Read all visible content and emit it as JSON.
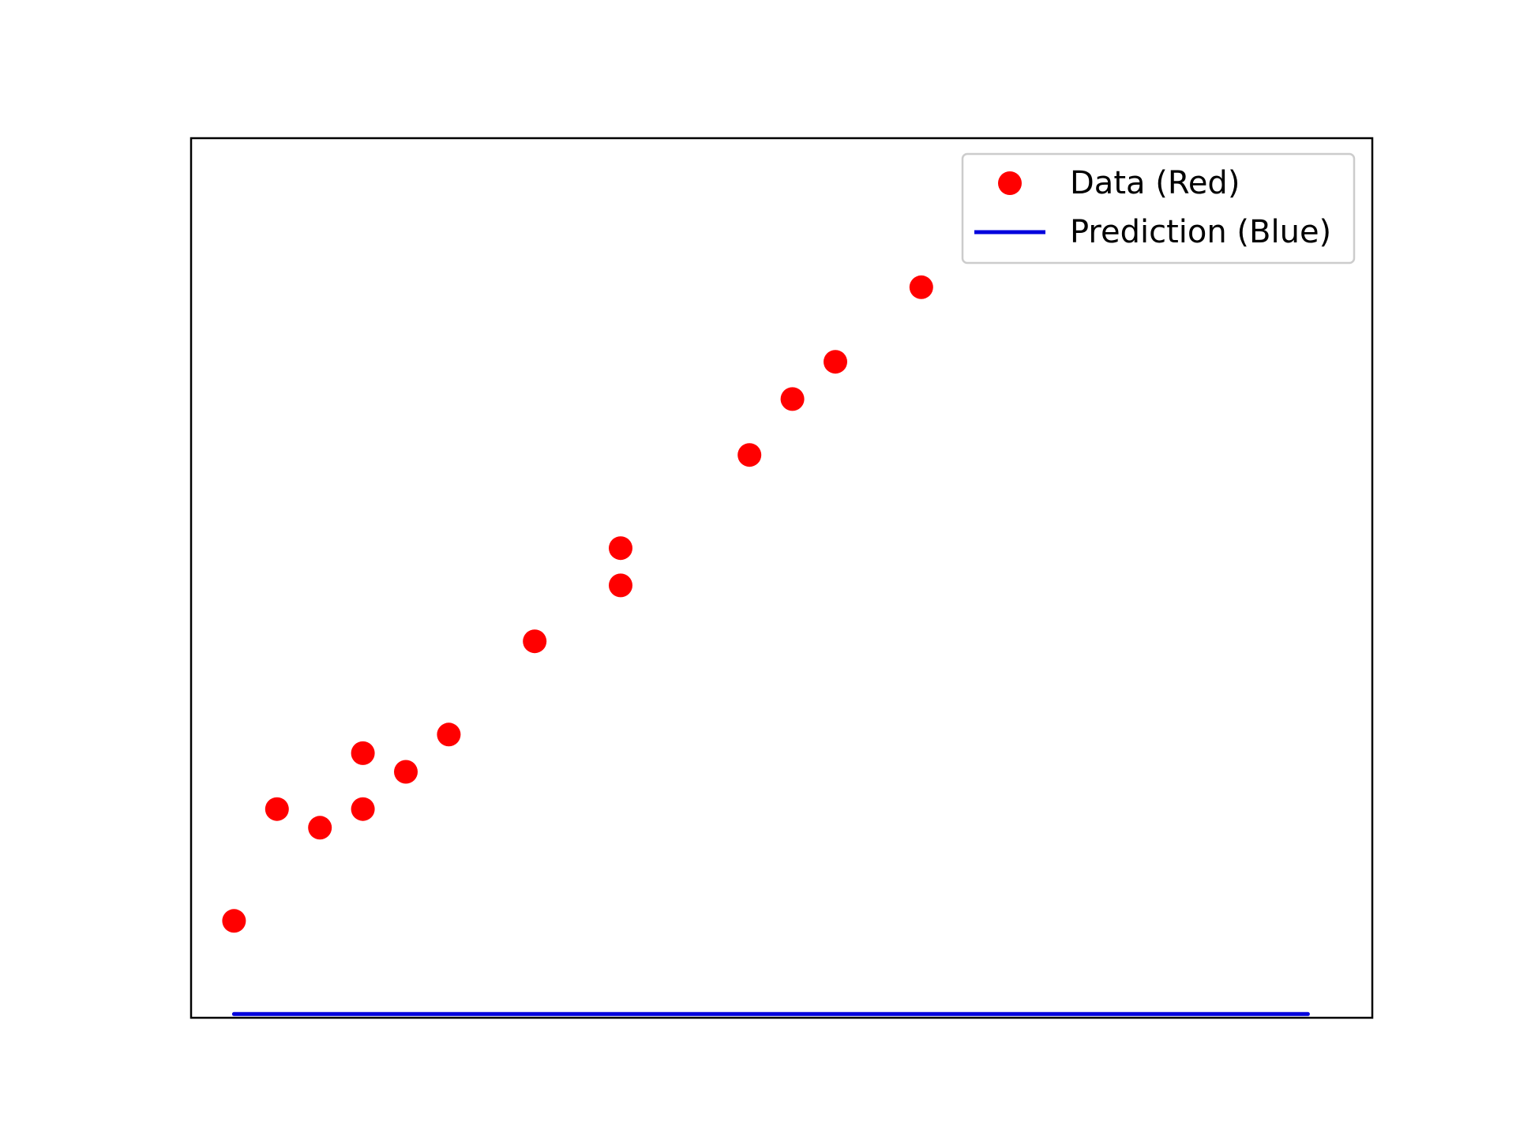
{
  "chart_data": {
    "type": "scatter",
    "title": "",
    "xlabel": "",
    "ylabel": "",
    "xlim": [
      0,
      27.5
    ],
    "ylim": [
      -2.2,
      45
    ],
    "grid": false,
    "axis_ticks": "hidden",
    "legend_position": "top-right",
    "series": [
      {
        "name": "Data (Red)",
        "kind": "scatter",
        "color": "#ff0000",
        "x": [
          1,
          2,
          3,
          4,
          4,
          5,
          6,
          8,
          10,
          10,
          13,
          14,
          15,
          17
        ],
        "y": [
          3,
          9,
          8,
          9,
          12,
          11,
          13,
          18,
          21,
          23,
          28,
          31,
          33,
          37
        ]
      },
      {
        "name": "Prediction (Blue)",
        "kind": "line",
        "color": "#0000dd",
        "x": [
          1,
          26
        ],
        "y": [
          -2,
          -2
        ]
      }
    ]
  }
}
